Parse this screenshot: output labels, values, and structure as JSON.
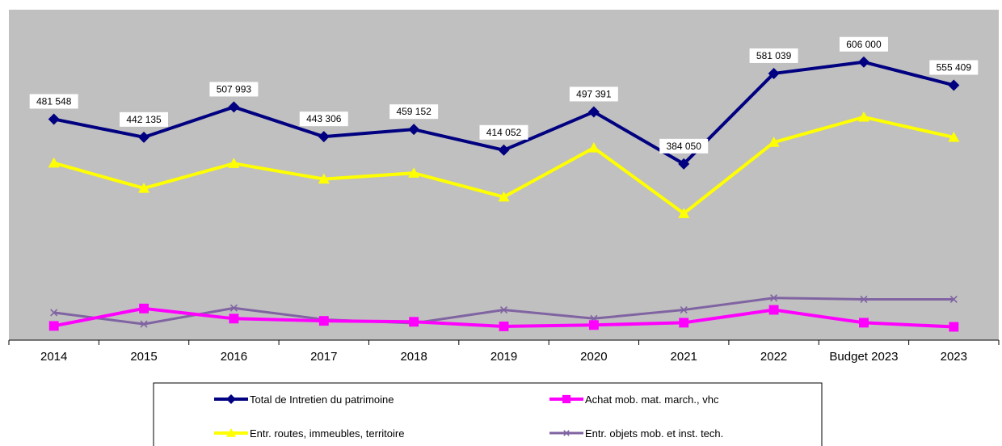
{
  "chart_data": {
    "type": "line",
    "title": "",
    "xlabel": "",
    "ylabel": "",
    "categories": [
      "2014",
      "2015",
      "2016",
      "2017",
      "2018",
      "2019",
      "2020",
      "2021",
      "2022",
      "Budget 2023",
      "2023"
    ],
    "ylim": [
      0,
      720000
    ],
    "grid": false,
    "legend_position": "bottom",
    "plot_background": "#c0c0c0",
    "series": [
      {
        "name": "Total de Intretien du patrimoine",
        "color": "#000080",
        "marker": "diamond",
        "values": [
          481548,
          442135,
          507993,
          443306,
          459152,
          414052,
          497391,
          384050,
          581039,
          606000,
          555409
        ],
        "data_labels": [
          "481 548",
          "442 135",
          "507 993",
          "443 306",
          "459 152",
          "414 052",
          "497 391",
          "384 050",
          "581 039",
          "606 000",
          "555 409"
        ]
      },
      {
        "name": "Achat mob. mat. march., vhc",
        "color": "#ff00ff",
        "marker": "square",
        "values": [
          31000,
          69000,
          47000,
          42000,
          40000,
          30000,
          33000,
          38000,
          66000,
          38000,
          29000
        ]
      },
      {
        "name": "Entr. routes, immeubles, territoire",
        "color": "#ffff00",
        "marker": "triangle",
        "values": [
          386000,
          331000,
          385000,
          351000,
          364000,
          312000,
          419000,
          276000,
          431000,
          486000,
          442000
        ]
      },
      {
        "name": "Entr. objets mob. et inst. tech.",
        "color": "#8064a2",
        "marker": "x",
        "values": [
          60000,
          35000,
          70000,
          45000,
          37000,
          66000,
          47000,
          66000,
          92000,
          89000,
          89000
        ]
      }
    ]
  }
}
